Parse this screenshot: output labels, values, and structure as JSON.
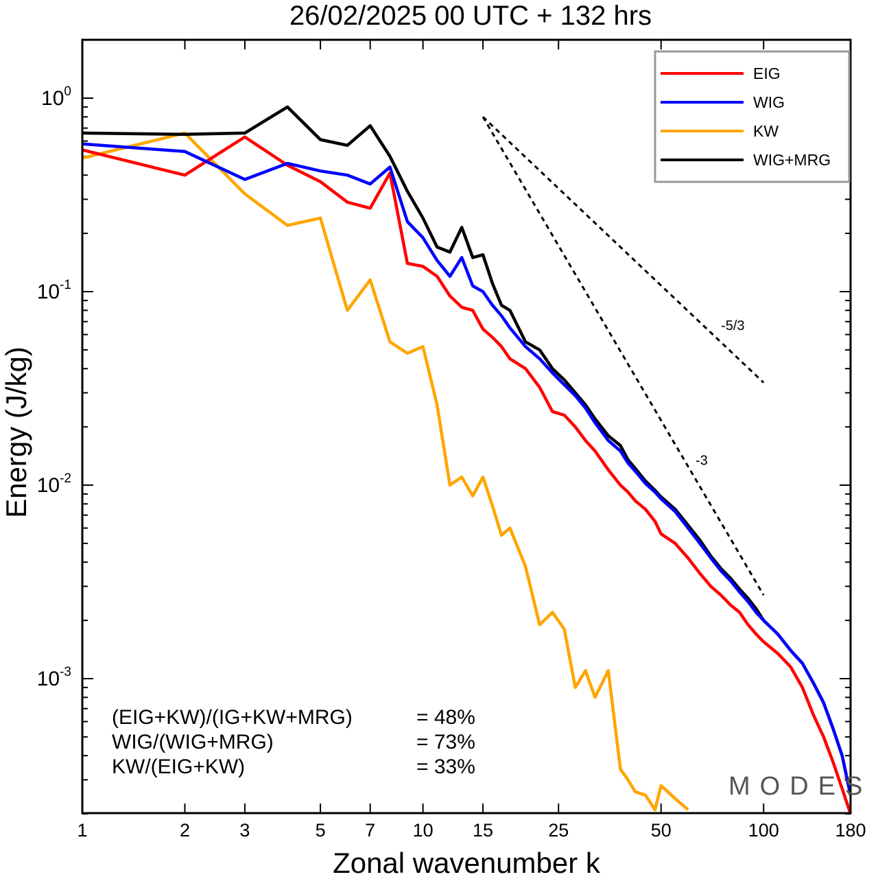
{
  "chart_data": {
    "type": "line",
    "title": "26/02/2025  00 UTC  + 132 hrs",
    "xlabel": "Zonal wavenumber k",
    "ylabel": "Energy (J/kg)",
    "xscale": "log",
    "yscale": "log",
    "xlim": [
      1,
      180
    ],
    "ylim": [
      0.0002,
      2
    ],
    "x_ticks": [
      1,
      2,
      3,
      5,
      7,
      10,
      15,
      25,
      50,
      100,
      180
    ],
    "x_tick_labels": [
      "1",
      "2",
      "3",
      "5",
      "7",
      "10",
      "15",
      "25",
      "50",
      "100",
      "180"
    ],
    "y_ticks": [
      {
        "base": "10",
        "exp": "0",
        "value": 1
      },
      {
        "base": "10",
        "exp": "-1",
        "value": 0.1
      },
      {
        "base": "10",
        "exp": "-2",
        "value": 0.01
      },
      {
        "base": "10",
        "exp": "-3",
        "value": 0.001
      }
    ],
    "legend_position": "top-right",
    "series": [
      {
        "name": "EIG",
        "color": "#ff0000",
        "points": [
          [
            1,
            0.54
          ],
          [
            2,
            0.4
          ],
          [
            3,
            0.63
          ],
          [
            4,
            0.45
          ],
          [
            5,
            0.37
          ],
          [
            6,
            0.29
          ],
          [
            7,
            0.27
          ],
          [
            8,
            0.41
          ],
          [
            9,
            0.14
          ],
          [
            10,
            0.135
          ],
          [
            11,
            0.12
          ],
          [
            12,
            0.095
          ],
          [
            13,
            0.083
          ],
          [
            14,
            0.08
          ],
          [
            15,
            0.064
          ],
          [
            16,
            0.058
          ],
          [
            17,
            0.052
          ],
          [
            18,
            0.045
          ],
          [
            20,
            0.04
          ],
          [
            22,
            0.032
          ],
          [
            24,
            0.024
          ],
          [
            26,
            0.023
          ],
          [
            28,
            0.02
          ],
          [
            30,
            0.017
          ],
          [
            32,
            0.015
          ],
          [
            35,
            0.012
          ],
          [
            38,
            0.01
          ],
          [
            40,
            0.0092
          ],
          [
            42,
            0.0083
          ],
          [
            45,
            0.0075
          ],
          [
            48,
            0.0065
          ],
          [
            50,
            0.0056
          ],
          [
            55,
            0.005
          ],
          [
            60,
            0.0042
          ],
          [
            65,
            0.0035
          ],
          [
            70,
            0.003
          ],
          [
            75,
            0.0027
          ],
          [
            80,
            0.0024
          ],
          [
            85,
            0.0022
          ],
          [
            90,
            0.0019
          ],
          [
            95,
            0.0017
          ],
          [
            100,
            0.00155
          ],
          [
            110,
            0.00135
          ],
          [
            120,
            0.00115
          ],
          [
            130,
            0.0009
          ],
          [
            140,
            0.00065
          ],
          [
            150,
            0.0005
          ],
          [
            160,
            0.00037
          ],
          [
            170,
            0.00027
          ],
          [
            180,
            0.0002
          ]
        ]
      },
      {
        "name": "WIG",
        "color": "#0000ff",
        "points": [
          [
            1,
            0.58
          ],
          [
            2,
            0.53
          ],
          [
            3,
            0.38
          ],
          [
            4,
            0.46
          ],
          [
            5,
            0.42
          ],
          [
            6,
            0.4
          ],
          [
            7,
            0.36
          ],
          [
            8,
            0.44
          ],
          [
            9,
            0.23
          ],
          [
            10,
            0.19
          ],
          [
            11,
            0.145
          ],
          [
            12,
            0.12
          ],
          [
            13,
            0.15
          ],
          [
            14,
            0.107
          ],
          [
            15,
            0.1
          ],
          [
            16,
            0.085
          ],
          [
            17,
            0.075
          ],
          [
            18,
            0.065
          ],
          [
            20,
            0.052
          ],
          [
            22,
            0.045
          ],
          [
            24,
            0.038
          ],
          [
            26,
            0.033
          ],
          [
            28,
            0.029
          ],
          [
            30,
            0.025
          ],
          [
            32,
            0.021
          ],
          [
            35,
            0.017
          ],
          [
            38,
            0.015
          ],
          [
            40,
            0.013
          ],
          [
            42,
            0.0118
          ],
          [
            45,
            0.0102
          ],
          [
            48,
            0.0092
          ],
          [
            50,
            0.0085
          ],
          [
            55,
            0.0073
          ],
          [
            60,
            0.006
          ],
          [
            65,
            0.005
          ],
          [
            70,
            0.0042
          ],
          [
            75,
            0.0036
          ],
          [
            80,
            0.0032
          ],
          [
            85,
            0.0028
          ],
          [
            90,
            0.0025
          ],
          [
            95,
            0.0022
          ],
          [
            100,
            0.002
          ],
          [
            110,
            0.0017
          ],
          [
            120,
            0.0014
          ],
          [
            130,
            0.0012
          ],
          [
            140,
            0.00095
          ],
          [
            150,
            0.00075
          ],
          [
            160,
            0.00055
          ],
          [
            170,
            0.0004
          ],
          [
            180,
            0.00025
          ]
        ]
      },
      {
        "name": "KW",
        "color": "#ffa500",
        "points": [
          [
            1,
            0.49
          ],
          [
            2,
            0.66
          ],
          [
            3,
            0.32
          ],
          [
            4,
            0.22
          ],
          [
            5,
            0.24
          ],
          [
            6,
            0.08
          ],
          [
            7,
            0.115
          ],
          [
            8,
            0.055
          ],
          [
            9,
            0.048
          ],
          [
            10,
            0.052
          ],
          [
            11,
            0.026
          ],
          [
            12,
            0.01
          ],
          [
            13,
            0.011
          ],
          [
            14,
            0.0088
          ],
          [
            15,
            0.011
          ],
          [
            16,
            0.0078
          ],
          [
            17,
            0.0055
          ],
          [
            18,
            0.006
          ],
          [
            20,
            0.0038
          ],
          [
            22,
            0.0019
          ],
          [
            24,
            0.0022
          ],
          [
            26,
            0.0018
          ],
          [
            28,
            0.0009
          ],
          [
            30,
            0.0011
          ],
          [
            32,
            0.0008
          ],
          [
            35,
            0.0011
          ],
          [
            38,
            0.00034
          ],
          [
            40,
            0.0003
          ],
          [
            42,
            0.00026
          ],
          [
            45,
            0.00025
          ],
          [
            48,
            0.00021
          ],
          [
            50,
            0.00028
          ],
          [
            55,
            0.00024
          ],
          [
            60,
            0.00021
          ]
        ]
      },
      {
        "name": "WIG+MRG",
        "color": "#000000",
        "points": [
          [
            1,
            0.66
          ],
          [
            2,
            0.65
          ],
          [
            3,
            0.66
          ],
          [
            4,
            0.9
          ],
          [
            5,
            0.61
          ],
          [
            6,
            0.57
          ],
          [
            7,
            0.72
          ],
          [
            8,
            0.5
          ],
          [
            9,
            0.33
          ],
          [
            10,
            0.24
          ],
          [
            11,
            0.17
          ],
          [
            12,
            0.16
          ],
          [
            13,
            0.215
          ],
          [
            14,
            0.15
          ],
          [
            15,
            0.155
          ],
          [
            16,
            0.11
          ],
          [
            17,
            0.085
          ],
          [
            18,
            0.08
          ],
          [
            20,
            0.055
          ],
          [
            22,
            0.05
          ],
          [
            24,
            0.04
          ],
          [
            26,
            0.035
          ],
          [
            28,
            0.03
          ],
          [
            30,
            0.026
          ],
          [
            32,
            0.022
          ],
          [
            35,
            0.018
          ],
          [
            38,
            0.016
          ],
          [
            40,
            0.0135
          ],
          [
            42,
            0.0122
          ],
          [
            45,
            0.0105
          ],
          [
            48,
            0.0094
          ],
          [
            50,
            0.0087
          ],
          [
            55,
            0.0075
          ],
          [
            60,
            0.0062
          ],
          [
            65,
            0.0052
          ],
          [
            70,
            0.0043
          ],
          [
            75,
            0.0037
          ],
          [
            80,
            0.0033
          ],
          [
            85,
            0.0029
          ],
          [
            90,
            0.0026
          ],
          [
            95,
            0.0023
          ],
          [
            100,
            0.002
          ],
          [
            110,
            0.0017
          ],
          [
            120,
            0.0014
          ],
          [
            130,
            0.0012
          ],
          [
            140,
            0.00095
          ],
          [
            150,
            0.00075
          ],
          [
            160,
            0.00055
          ],
          [
            170,
            0.0004
          ],
          [
            180,
            0.00025
          ]
        ]
      }
    ],
    "reference_lines": [
      {
        "label": "-5/3",
        "slope": -1.6667,
        "x_start": 15,
        "x_end": 100,
        "y_start": 0.8
      },
      {
        "label": "-3",
        "slope": -3,
        "x_start": 15,
        "x_end": 100,
        "y_start": 0.8
      }
    ],
    "stats": [
      {
        "label": "(EIG+KW)/(IG+KW+MRG)",
        "value": "= 48%"
      },
      {
        "label": "WIG/(WIG+MRG)",
        "value": "= 73%"
      },
      {
        "label": "KW/(EIG+KW)",
        "value": "= 33%"
      }
    ],
    "watermark": "MODES",
    "watermark_mark": "©"
  }
}
